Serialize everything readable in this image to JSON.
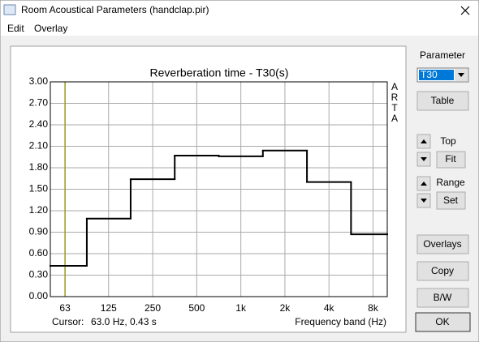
{
  "window": {
    "title": "Room Acoustical Parameters (handclap.pir)",
    "menu": [
      "Edit",
      "Overlay"
    ],
    "panel": {
      "parameter_label": "Parameter",
      "parameter_value": "T30",
      "table": "Table",
      "top_label": "Top",
      "fit": "Fit",
      "range_label": "Range",
      "set": "Set",
      "overlays": "Overlays",
      "copy": "Copy",
      "bw": "B/W",
      "ok": "OK"
    },
    "logo": [
      "A",
      "R",
      "T",
      "A"
    ]
  },
  "chart_data": {
    "type": "line",
    "drawstyle": "steps-mid",
    "title": "Reverberation time - T30(s)",
    "xlabel": "Frequency band (Hz)",
    "x": [
      63,
      125,
      250,
      500,
      1000,
      2000,
      4000,
      8000
    ],
    "series": [
      {
        "name": "T30",
        "color": "#000000",
        "values": [
          0.43,
          1.09,
          1.64,
          1.97,
          1.96,
          2.04,
          1.6,
          0.87
        ]
      }
    ],
    "xscale": "log",
    "xlim": [
      50,
      10000
    ],
    "xticks": [
      63,
      125,
      250,
      500,
      {
        "value": 1000,
        "label": "1k"
      },
      {
        "value": 2000,
        "label": "2k"
      },
      {
        "value": 4000,
        "label": "4k"
      },
      {
        "value": 8000,
        "label": "8k"
      }
    ],
    "ylim": [
      0,
      3
    ],
    "yticks": [
      {
        "value": 0,
        "label": "0.00"
      },
      {
        "value": 0.3,
        "label": "0.30"
      },
      {
        "value": 0.6,
        "label": "0.60"
      },
      {
        "value": 0.9,
        "label": "0.90"
      },
      {
        "value": 1.2,
        "label": "1.20"
      },
      {
        "value": 1.5,
        "label": "1.50"
      },
      {
        "value": 1.8,
        "label": "1.80"
      },
      {
        "value": 2.1,
        "label": "2.10"
      },
      {
        "value": 2.4,
        "label": "2.40"
      },
      {
        "value": 2.7,
        "label": "2.70"
      },
      {
        "value": 3,
        "label": "3.00"
      }
    ],
    "grid": true,
    "cursor": {
      "label": "Cursor:",
      "text": "63.0 Hz, 0.43 s",
      "x": 63,
      "color": "#a09a20"
    }
  }
}
